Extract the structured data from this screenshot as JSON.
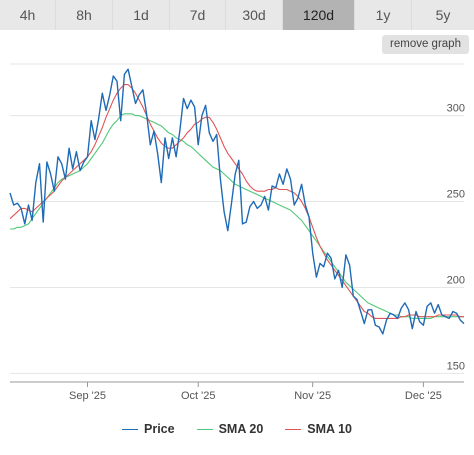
{
  "range_tabs": [
    {
      "label": "4h",
      "active": false
    },
    {
      "label": "8h",
      "active": false
    },
    {
      "label": "1d",
      "active": false
    },
    {
      "label": "7d",
      "active": false
    },
    {
      "label": "30d",
      "active": false
    },
    {
      "label": "120d",
      "active": true
    },
    {
      "label": "1y",
      "active": false
    },
    {
      "label": "5y",
      "active": false
    }
  ],
  "remove_graph_label": "remove graph",
  "colors": {
    "price": "#1f6bb5",
    "sma20": "#50c878",
    "sma10": "#e05555",
    "grid": "#e6e6e6",
    "tab_active": "#b3b3b3",
    "tab_bg": "#e8e8e8"
  },
  "chart_data": {
    "type": "line",
    "title": "",
    "xlabel": "",
    "ylabel": "",
    "ylim": [
      145,
      330
    ],
    "y_ticks": [
      150,
      200,
      250,
      300
    ],
    "x_ticks": [
      {
        "label": "Sep '25",
        "x": 21
      },
      {
        "label": "Oct '25",
        "x": 51
      },
      {
        "label": "Nov '25",
        "x": 82
      },
      {
        "label": "Dec '25",
        "x": 112
      }
    ],
    "x_range": [
      0,
      123
    ],
    "series": [
      {
        "name": "Price",
        "color": "#1f6bb5",
        "values": [
          255,
          248,
          249,
          246,
          237,
          248,
          239,
          261,
          272,
          238,
          273,
          266,
          256,
          276,
          272,
          263,
          281,
          269,
          279,
          268,
          273,
          276,
          297,
          286,
          298,
          313,
          303,
          312,
          323,
          320,
          297,
          324,
          327,
          317,
          307,
          312,
          315,
          301,
          283,
          291,
          278,
          261,
          287,
          275,
          287,
          276,
          291,
          310,
          304,
          309,
          305,
          283,
          300,
          306,
          290,
          285,
          289,
          263,
          244,
          233,
          249,
          266,
          274,
          237,
          238,
          247,
          250,
          246,
          248,
          253,
          245,
          259,
          258,
          266,
          260,
          269,
          263,
          248,
          252,
          260,
          248,
          241,
          220,
          206,
          214,
          212,
          220,
          217,
          205,
          210,
          200,
          219,
          213,
          195,
          193,
          186,
          179,
          187,
          187,
          178,
          177,
          173,
          181,
          185,
          184,
          182,
          188,
          191,
          187,
          176,
          186,
          180,
          178,
          189,
          191,
          185,
          190,
          184,
          183,
          182,
          186,
          185,
          181,
          179
        ]
      },
      {
        "name": "SMA 20",
        "color": "#50c878",
        "values": [
          234,
          234,
          235,
          235,
          236,
          237,
          240,
          243,
          246,
          249,
          252,
          255,
          258,
          261,
          263,
          264,
          265,
          266,
          267,
          268,
          270,
          272,
          275,
          278,
          281,
          284,
          288,
          292,
          295,
          297,
          300,
          301,
          301,
          301,
          300,
          300,
          299,
          298,
          297,
          296,
          295,
          294,
          292,
          290,
          289,
          287,
          286,
          285,
          283,
          282,
          280,
          278,
          276,
          274,
          272,
          270,
          269,
          268,
          266,
          264,
          262,
          260,
          259,
          258,
          257,
          256,
          255,
          254,
          253,
          252,
          251,
          250,
          249,
          248,
          247,
          246,
          245,
          243,
          241,
          239,
          236,
          233,
          230,
          227,
          224,
          221,
          218,
          215,
          212,
          209,
          206,
          203,
          201,
          199,
          197,
          195,
          193,
          191,
          190,
          189,
          188,
          187,
          186,
          185,
          184,
          184,
          183,
          183,
          183,
          182,
          182,
          182,
          182,
          182,
          182,
          183,
          183,
          183,
          183,
          183,
          183,
          183,
          183,
          183
        ]
      },
      {
        "name": "SMA 10",
        "color": "#e05555",
        "values": [
          240,
          242,
          244,
          246,
          246,
          245,
          244,
          246,
          248,
          250,
          252,
          254,
          256,
          259,
          262,
          264,
          266,
          268,
          270,
          272,
          274,
          276,
          279,
          283,
          288,
          293,
          299,
          304,
          309,
          313,
          316,
          318,
          318,
          316,
          313,
          309,
          305,
          300,
          295,
          291,
          287,
          284,
          282,
          281,
          281,
          283,
          285,
          287,
          290,
          292,
          295,
          296,
          298,
          299,
          299,
          296,
          292,
          287,
          282,
          278,
          275,
          272,
          269,
          266,
          262,
          259,
          257,
          256,
          256,
          256,
          257,
          257,
          258,
          257,
          257,
          257,
          256,
          255,
          253,
          250,
          246,
          241,
          235,
          229,
          224,
          220,
          216,
          213,
          210,
          207,
          204,
          201,
          198,
          195,
          192,
          189,
          186,
          185,
          183,
          182,
          182,
          182,
          182,
          182,
          182,
          182,
          183,
          183,
          184,
          184,
          184,
          183,
          183,
          183,
          183,
          183,
          184,
          184,
          184,
          184,
          184,
          184,
          183,
          183
        ]
      }
    ],
    "grid": true,
    "legend_position": "bottom-center"
  }
}
